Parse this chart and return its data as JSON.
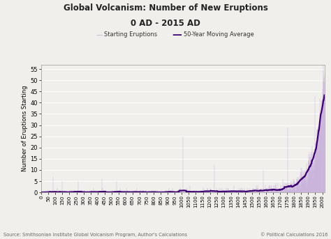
{
  "title_line1": "Global Volcanism: Number of New Eruptions",
  "title_line2": "0 AD - 2015 AD",
  "ylabel": "Number of Eruptions Starting",
  "source_text": "Source: Smithsonian Institute Global Volcanism Program, Author's Calculations",
  "copyright_text": "© Political Calculations 2016",
  "legend_raw": "Starting Eruptions",
  "legend_avg": "50-Year Moving Average",
  "raw_color": "#c8b0dc",
  "avg_color": "#3d0070",
  "background_color": "#f0efeb",
  "grid_color": "#ffffff",
  "ylim": [
    0,
    57
  ],
  "yticks": [
    0,
    5,
    10,
    15,
    20,
    25,
    30,
    35,
    40,
    45,
    50,
    55
  ],
  "xmin": 0,
  "xmax": 2015,
  "seed": 123
}
